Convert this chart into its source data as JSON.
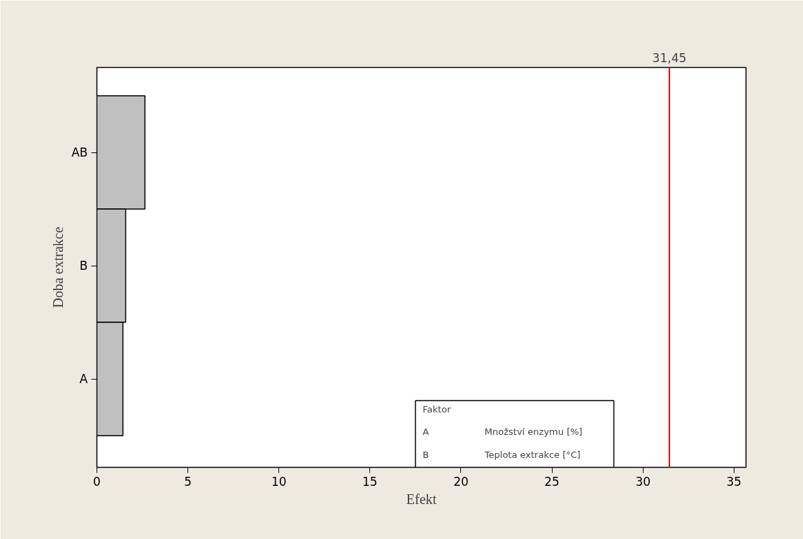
{
  "chart_data": {
    "type": "bar",
    "orientation": "horizontal",
    "xlabel": "Efekt",
    "ylabel": "Doba extrakce",
    "categories": [
      "AB",
      "B",
      "A"
    ],
    "values": [
      2.64,
      1.58,
      1.43
    ],
    "color": "#c0c0c0",
    "xlim": [
      0,
      35.66
    ],
    "xticks": [
      0,
      5,
      10,
      15,
      20,
      25,
      30,
      35
    ],
    "grid": false,
    "ref_lines": [
      {
        "axis": "x",
        "value": 31.45,
        "label": "31,45",
        "color": "#ff0000"
      }
    ],
    "annotations": [
      "Faktor",
      "A",
      "Množství enzymu [%]",
      "B",
      "Teplota extrakce [°C]"
    ]
  }
}
